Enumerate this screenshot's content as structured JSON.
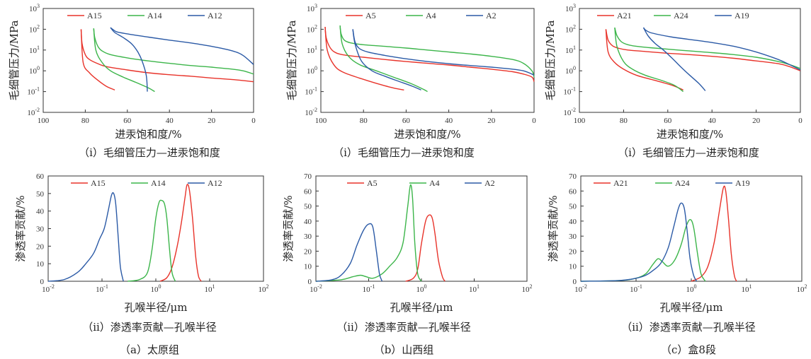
{
  "colors": {
    "red": "#e8332a",
    "green": "#3cb54a",
    "blue": "#2b5aa6"
  },
  "section_captions": [
    "（a）太原组",
    "（b）山西组",
    "（c）盒8段"
  ],
  "chart_data": [
    {
      "id": "cp-a",
      "type": "line",
      "panel": 0,
      "caption": "（i）毛细管压力—进汞饱和度",
      "xlabel": "进汞饱和度/%",
      "ylabel": "毛细管压力/MPa",
      "xlim": [
        100,
        0
      ],
      "x_reversed": true,
      "ylim_log": [
        -2,
        3
      ],
      "xticks": [
        "100",
        "80",
        "60",
        "40",
        "20",
        "0"
      ],
      "xtick_values": [
        100,
        80,
        60,
        40,
        20,
        0
      ],
      "ytick_exponents": [
        "3",
        "2",
        "1",
        "0",
        "-1",
        "-2"
      ],
      "ytick_base": "10",
      "series": [
        {
          "name": "A15",
          "color": "red",
          "x": [
            82,
            81.5,
            80,
            78,
            74,
            70,
            60,
            50,
            40,
            30,
            20,
            10,
            0
          ],
          "y": [
            100,
            20,
            6,
            3.5,
            2.2,
            1.6,
            1.1,
            0.8,
            0.65,
            0.55,
            0.45,
            0.38,
            0.3
          ],
          "tail_x": [
            82,
            81,
            78,
            74,
            70,
            66
          ],
          "tail_y": [
            100,
            2.5,
            0.8,
            0.35,
            0.18,
            0.12
          ]
        },
        {
          "name": "A14",
          "color": "green",
          "x": [
            76,
            75.5,
            74,
            72,
            68,
            60,
            50,
            40,
            30,
            20,
            10,
            5,
            0
          ],
          "y": [
            110,
            40,
            15,
            9,
            6,
            4.2,
            3,
            2.3,
            1.8,
            1.5,
            1.2,
            1,
            0.7
          ],
          "tail_x": [
            76,
            75,
            72,
            68,
            62,
            56,
            50,
            47
          ],
          "tail_y": [
            110,
            10,
            2.5,
            1,
            0.5,
            0.28,
            0.15,
            0.1
          ]
        },
        {
          "name": "A12",
          "color": "blue",
          "x": [
            68,
            67,
            65,
            60,
            50,
            40,
            30,
            20,
            10,
            5,
            0
          ],
          "y": [
            120,
            100,
            75,
            60,
            42,
            30,
            22,
            15,
            9,
            5.5,
            2
          ],
          "tail_x": [
            68,
            66,
            62,
            58,
            55,
            53,
            51,
            50.5
          ],
          "tail_y": [
            120,
            70,
            40,
            20,
            8,
            3,
            0.6,
            0.1
          ]
        }
      ]
    },
    {
      "id": "cp-b",
      "type": "line",
      "panel": 1,
      "caption": "（i）毛细管压力—进汞饱和度",
      "xlabel": "进汞饱和度/%",
      "ylabel": "毛细管压力/MPa",
      "xlim": [
        100,
        0
      ],
      "x_reversed": true,
      "ylim_log": [
        -2,
        3
      ],
      "xticks": [
        "100",
        "80",
        "60",
        "40",
        "20",
        "0"
      ],
      "xtick_values": [
        100,
        80,
        60,
        40,
        20,
        0
      ],
      "ytick_exponents": [
        "3",
        "2",
        "1",
        "0",
        "-1",
        "-2"
      ],
      "ytick_base": "10",
      "series": [
        {
          "name": "A5",
          "color": "red",
          "x": [
            98,
            97.5,
            96,
            94,
            90,
            80,
            70,
            60,
            50,
            40,
            30,
            20,
            10,
            5,
            1,
            0
          ],
          "y": [
            130,
            40,
            15,
            8.5,
            6,
            4.5,
            3.5,
            2.8,
            2.3,
            1.9,
            1.5,
            1.2,
            0.9,
            0.7,
            0.5,
            0.3
          ],
          "tail_x": [
            98,
            97,
            94,
            90,
            82,
            74,
            66,
            61
          ],
          "tail_y": [
            130,
            10,
            2,
            0.9,
            0.45,
            0.25,
            0.15,
            0.12
          ]
        },
        {
          "name": "A4",
          "color": "green",
          "x": [
            91,
            90.5,
            89,
            86,
            80,
            70,
            60,
            50,
            40,
            30,
            20,
            10,
            5,
            1,
            0
          ],
          "y": [
            150,
            60,
            30,
            22,
            18,
            15,
            12.5,
            10,
            8,
            6.5,
            5,
            3.5,
            2.3,
            1,
            0.5
          ],
          "tail_x": [
            91,
            90,
            87,
            82,
            74,
            66,
            58,
            52,
            50
          ],
          "tail_y": [
            150,
            20,
            5,
            2,
            1,
            0.5,
            0.25,
            0.13,
            0.1
          ]
        },
        {
          "name": "A2",
          "color": "blue",
          "x": [
            85,
            84,
            82,
            78,
            70,
            60,
            50,
            40,
            30,
            20,
            10,
            5,
            1,
            0
          ],
          "y": [
            100,
            25,
            12,
            8,
            5.5,
            3.8,
            2.8,
            2.2,
            1.8,
            1.5,
            1.2,
            1,
            0.7,
            0.6
          ],
          "tail_x": [
            85,
            84,
            81,
            76,
            70,
            63,
            57,
            53
          ],
          "tail_y": [
            100,
            20,
            3,
            1,
            0.55,
            0.3,
            0.18,
            0.12
          ]
        }
      ]
    },
    {
      "id": "cp-c",
      "type": "line",
      "panel": 2,
      "caption": "（i）毛细管压力—进汞饱和度",
      "xlabel": "进汞饱和度/%",
      "ylabel": "毛细管压力/MPa",
      "xlim": [
        100,
        0
      ],
      "x_reversed": true,
      "ylim_log": [
        -2,
        3
      ],
      "xticks": [
        "100",
        "80",
        "60",
        "40",
        "20",
        "0"
      ],
      "xtick_values": [
        100,
        80,
        60,
        40,
        20,
        0
      ],
      "ytick_exponents": [
        "3",
        "2",
        "1",
        "0",
        "-1",
        "-2"
      ],
      "ytick_base": "10",
      "series": [
        {
          "name": "A21",
          "color": "red",
          "x": [
            88,
            87,
            85,
            82,
            78,
            70,
            60,
            50,
            40,
            30,
            20,
            10,
            5,
            0
          ],
          "y": [
            100,
            30,
            16,
            12,
            10,
            8.5,
            7,
            6,
            5,
            4,
            3,
            2.2,
            1.6,
            1
          ],
          "tail_x": [
            88,
            87,
            84,
            80,
            74,
            66,
            58,
            53
          ],
          "tail_y": [
            100,
            8,
            2.5,
            1.2,
            0.6,
            0.35,
            0.2,
            0.12
          ]
        },
        {
          "name": "A24",
          "color": "green",
          "x": [
            84,
            83,
            81,
            78,
            74,
            68,
            60,
            50,
            40,
            30,
            20,
            10,
            5,
            0
          ],
          "y": [
            120,
            50,
            25,
            18,
            15,
            13,
            11,
            9,
            7.5,
            6,
            4.5,
            2.8,
            2,
            1.3
          ],
          "tail_x": [
            84,
            83,
            80,
            76,
            70,
            63,
            57,
            53
          ],
          "tail_y": [
            120,
            15,
            2.8,
            1.2,
            0.6,
            0.35,
            0.2,
            0.1
          ]
        },
        {
          "name": "A19",
          "color": "blue",
          "x": [
            71,
            70,
            68,
            64,
            58,
            50,
            40,
            30,
            20,
            10,
            5,
            0
          ],
          "y": [
            120,
            90,
            70,
            55,
            42,
            32,
            23,
            15,
            8,
            3.5,
            2,
            1.1
          ],
          "tail_x": [
            71,
            69,
            66,
            62,
            58,
            54,
            50,
            46,
            43
          ],
          "tail_y": [
            120,
            50,
            22,
            10,
            4,
            1.5,
            0.6,
            0.25,
            0.11
          ]
        }
      ]
    },
    {
      "id": "pk-a",
      "type": "line",
      "panel": 3,
      "caption": "（ii）渗透率贡献—孔喉半径",
      "xlabel": "孔喉半径/μm",
      "ylabel": "渗透率贡献/%",
      "xlim_log": [
        -2,
        2
      ],
      "ylim": [
        0,
        60
      ],
      "xtick_exponents": [
        "-2",
        "-1",
        "0",
        "1",
        "2"
      ],
      "xtick_base": "10",
      "yticks": [
        "0",
        "10",
        "20",
        "30",
        "40",
        "50",
        "60"
      ],
      "ytick_values": [
        0,
        10,
        20,
        30,
        40,
        50,
        60
      ],
      "series": [
        {
          "name": "A15",
          "color": "red",
          "x": [
            1.2,
            1.6,
            2.0,
            2.5,
            3.0,
            3.5,
            3.8,
            4.2,
            4.8,
            5.5,
            6.2,
            7.0
          ],
          "y": [
            0,
            2,
            8,
            20,
            34,
            48,
            55,
            52,
            36,
            14,
            3,
            0
          ]
        },
        {
          "name": "A14",
          "color": "green",
          "x": [
            0.3,
            0.5,
            0.7,
            0.85,
            1.0,
            1.15,
            1.3,
            1.45,
            1.6,
            1.8,
            2.0,
            2.3
          ],
          "y": [
            0,
            1,
            5,
            18,
            36,
            45,
            46,
            44,
            36,
            18,
            5,
            0
          ]
        },
        {
          "name": "A12",
          "color": "blue",
          "x": [
            0.01,
            0.02,
            0.035,
            0.05,
            0.07,
            0.09,
            0.11,
            0.13,
            0.15,
            0.165,
            0.18,
            0.2,
            0.22,
            0.25
          ],
          "y": [
            0,
            1,
            5,
            10,
            16,
            24,
            30,
            40,
            49,
            50,
            44,
            25,
            8,
            0
          ]
        }
      ]
    },
    {
      "id": "pk-b",
      "type": "line",
      "panel": 4,
      "caption": "（ii）渗透率贡献—孔喉半径",
      "xlabel": "孔喉半径/μm",
      "ylabel": "渗透率贡献/%",
      "xlim_log": [
        -2,
        2
      ],
      "ylim": [
        0,
        70
      ],
      "xtick_exponents": [
        "-2",
        "-1",
        "0",
        "1",
        "2"
      ],
      "xtick_base": "10",
      "yticks": [
        "0",
        "10",
        "20",
        "30",
        "40",
        "50",
        "60",
        "70"
      ],
      "ytick_values": [
        0,
        10,
        20,
        30,
        40,
        50,
        60,
        70
      ],
      "series": [
        {
          "name": "A5",
          "color": "red",
          "x": [
            0.5,
            0.7,
            0.85,
            1.0,
            1.2,
            1.4,
            1.6,
            1.8,
            2.1,
            2.5,
            2.8
          ],
          "y": [
            0,
            2,
            8,
            25,
            40,
            44,
            42,
            32,
            14,
            3,
            0
          ]
        },
        {
          "name": "A4",
          "color": "green",
          "x": [
            0.01,
            0.03,
            0.05,
            0.07,
            0.09,
            0.12,
            0.18,
            0.25,
            0.35,
            0.45,
            0.55,
            0.62,
            0.68,
            0.75,
            0.85,
            1.0
          ],
          "y": [
            0,
            1,
            3,
            4,
            3,
            2,
            5,
            10,
            16,
            26,
            50,
            64,
            55,
            25,
            5,
            0
          ]
        },
        {
          "name": "A2",
          "color": "blue",
          "x": [
            0.01,
            0.02,
            0.03,
            0.045,
            0.06,
            0.08,
            0.1,
            0.12,
            0.14,
            0.16,
            0.18
          ],
          "y": [
            0,
            1,
            4,
            12,
            24,
            34,
            38,
            36,
            20,
            5,
            0
          ]
        }
      ]
    },
    {
      "id": "pk-c",
      "type": "line",
      "panel": 5,
      "caption": "（ii）渗透率贡献—孔喉半径",
      "xlabel": "孔喉半径/μm",
      "ylabel": "渗透率贡献/%",
      "xlim_log": [
        -2,
        2
      ],
      "ylim": [
        0,
        70
      ],
      "xtick_exponents": [
        "-2",
        "-1",
        "0",
        "1",
        "2"
      ],
      "xtick_base": "10",
      "yticks": [
        "0",
        "10",
        "20",
        "30",
        "40",
        "50",
        "60",
        "70"
      ],
      "ytick_values": [
        0,
        10,
        20,
        30,
        40,
        50,
        60,
        70
      ],
      "series": [
        {
          "name": "A21",
          "color": "red",
          "x": [
            1.0,
            1.5,
            2.0,
            2.6,
            3.2,
            3.8,
            4.2,
            4.7,
            5.3,
            6.0,
            6.6
          ],
          "y": [
            0,
            3,
            10,
            26,
            46,
            62,
            60,
            42,
            18,
            4,
            0
          ]
        },
        {
          "name": "A24",
          "color": "green",
          "x": [
            0.01,
            0.05,
            0.1,
            0.15,
            0.2,
            0.25,
            0.3,
            0.38,
            0.5,
            0.65,
            0.8,
            0.95,
            1.1,
            1.3,
            1.5,
            1.8
          ],
          "y": [
            0,
            0.5,
            2,
            5,
            11,
            15,
            13,
            10,
            14,
            24,
            36,
            41,
            36,
            18,
            5,
            0
          ]
        },
        {
          "name": "A19",
          "color": "blue",
          "x": [
            0.01,
            0.05,
            0.1,
            0.15,
            0.2,
            0.28,
            0.38,
            0.48,
            0.58,
            0.66,
            0.75,
            0.85,
            0.95,
            1.1,
            1.25
          ],
          "y": [
            0,
            0.5,
            2,
            4,
            7,
            12,
            22,
            36,
            48,
            52,
            48,
            32,
            15,
            4,
            0
          ]
        }
      ]
    }
  ]
}
